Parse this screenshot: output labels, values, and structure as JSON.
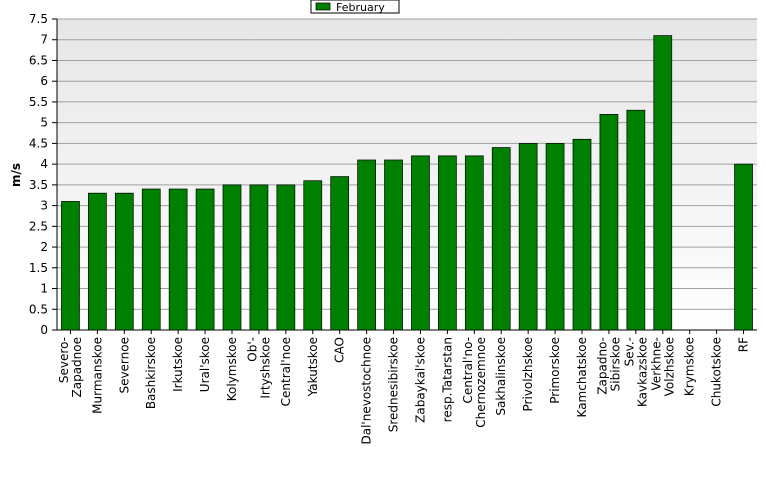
{
  "chart_data": {
    "type": "bar",
    "series": [
      {
        "name": "February",
        "color": "#008000",
        "values": [
          3.1,
          3.3,
          3.3,
          3.4,
          3.4,
          3.4,
          3.5,
          3.5,
          3.5,
          3.6,
          3.7,
          4.1,
          4.1,
          4.2,
          4.2,
          4.2,
          4.4,
          4.5,
          4.5,
          4.6,
          5.2,
          5.3,
          7.1,
          null,
          null,
          4.0
        ]
      }
    ],
    "categories": [
      "Severo-\nZapadnoe",
      "Murmanskoe",
      "Severnoe",
      "Bashkirskoe",
      "Irkutskoe",
      "Ural'skoe",
      "Kolymskoe",
      "Ob'-\nIrtyshskoe",
      "Central'noe",
      "Yakutskoe",
      "CAO",
      "Dal'nevostochnoe",
      "Srednesibirskoe",
      "Zabaykal'skoe",
      "resp.Tatarstan",
      "Central'no-\nChernozemnoe",
      "Sakhalinskoe",
      "Privolzhskoe",
      "Primorskoe",
      "Kamchatskoe",
      "Zapadno-\nSibirskoe",
      "Sev.-\nKavkazskoe",
      "Verkhne-\nVolzhskoe",
      "Krymskoe",
      "Chukotskoe",
      "RF"
    ],
    "y_label": "m/s",
    "ylim": [
      0,
      7.5
    ],
    "yticks": [
      0,
      0.5,
      1,
      1.5,
      2,
      2.5,
      3,
      3.5,
      4,
      4.5,
      5,
      5.5,
      6,
      6.5,
      7,
      7.5
    ],
    "grid": true,
    "legend": "top"
  }
}
